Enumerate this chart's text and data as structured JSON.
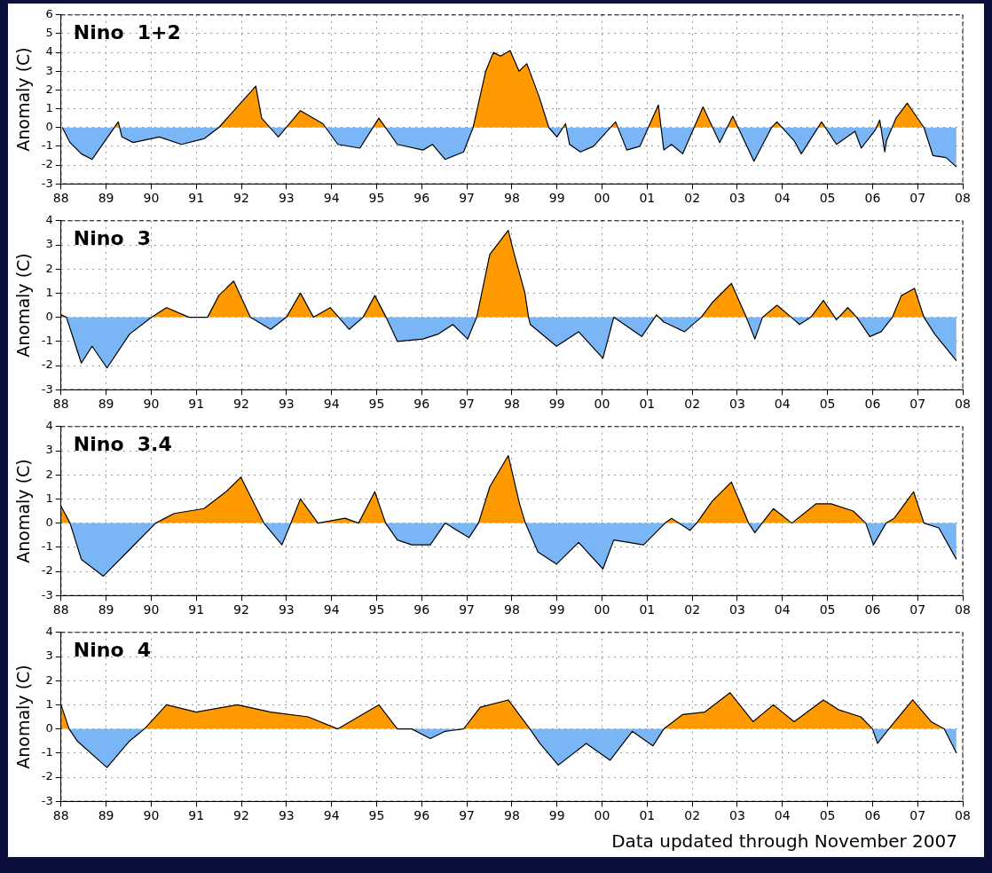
{
  "chart_data": [
    {
      "type": "area",
      "title": "Nino  1+2",
      "ylabel": "Anomaly (C)",
      "colors": [
        "#ff9900",
        "#7ab6f5"
      ],
      "grid": true,
      "marker": "none",
      "xlim": [
        1988,
        2008
      ],
      "ylim": [
        -3,
        6
      ],
      "yticks": [
        -3,
        -2,
        -1,
        0,
        1,
        2,
        3,
        4,
        5,
        6
      ],
      "xticks": [
        {
          "value": 1988,
          "label": "88"
        },
        {
          "value": 1989,
          "label": "89"
        },
        {
          "value": 1990,
          "label": "90"
        },
        {
          "value": 1991,
          "label": "91"
        },
        {
          "value": 1992,
          "label": "92"
        },
        {
          "value": 1993,
          "label": "93"
        },
        {
          "value": 1994,
          "label": "94"
        },
        {
          "value": 1995,
          "label": "95"
        },
        {
          "value": 1996,
          "label": "96"
        },
        {
          "value": 1997,
          "label": "97"
        },
        {
          "value": 1998,
          "label": "98"
        },
        {
          "value": 1999,
          "label": "99"
        },
        {
          "value": 2000,
          "label": "00"
        },
        {
          "value": 2001,
          "label": "01"
        },
        {
          "value": 2002,
          "label": "02"
        },
        {
          "value": 2003,
          "label": "03"
        },
        {
          "value": 2004,
          "label": "04"
        },
        {
          "value": 2005,
          "label": "05"
        },
        {
          "value": 2006,
          "label": "06"
        },
        {
          "value": 2007,
          "label": "07"
        },
        {
          "value": 2008,
          "label": "08"
        }
      ],
      "series": [
        {
          "color": "#000000",
          "x": [
            1988.03,
            1988.2,
            1988.45,
            1988.69,
            1989.27,
            1989.35,
            1989.6,
            1990.18,
            1990.67,
            1991.17,
            1991.5,
            1992.32,
            1992.45,
            1992.82,
            1993.31,
            1993.81,
            1994.14,
            1994.63,
            1995.05,
            1995.46,
            1996.03,
            1996.24,
            1996.52,
            1996.93,
            1997.14,
            1997.42,
            1997.59,
            1997.75,
            1997.96,
            1998.16,
            1998.33,
            1998.41,
            1998.61,
            1998.82,
            1999.0,
            1999.19,
            1999.28,
            1999.52,
            1999.81,
            2000.3,
            2000.55,
            2000.84,
            2001.25,
            2001.37,
            2001.54,
            2001.79,
            2002.24,
            2002.61,
            2002.9,
            2003.37,
            2003.76,
            2003.88,
            2004.26,
            2004.42,
            2004.87,
            2005.2,
            2005.61,
            2005.75,
            2006.07,
            2006.16,
            2006.27,
            2006.31,
            2006.52,
            2006.77,
            2007.14,
            2007.34,
            2007.63,
            2007.86
          ],
          "values": [
            0,
            -0.8,
            -1.4,
            -1.7,
            0.3,
            -0.5,
            -0.8,
            -0.5,
            -0.9,
            -0.6,
            0,
            2.2,
            0.5,
            -0.5,
            0.9,
            0.2,
            -0.9,
            -1.1,
            0.5,
            -0.9,
            -1.2,
            -0.9,
            -1.7,
            -1.3,
            0,
            3.0,
            4.0,
            3.8,
            4.1,
            3.0,
            3.4,
            2.9,
            1.6,
            0,
            -0.5,
            0.2,
            -0.9,
            -1.3,
            -1.0,
            0.3,
            -1.2,
            -1.0,
            1.2,
            -1.2,
            -0.9,
            -1.4,
            1.1,
            -0.8,
            0.6,
            -1.8,
            0,
            0.3,
            -0.7,
            -1.4,
            0.3,
            -0.9,
            -0.2,
            -1.1,
            -0.1,
            0.4,
            -1.3,
            -0.7,
            0.5,
            1.3,
            0,
            -1.5,
            -1.6,
            -2.1
          ]
        }
      ]
    },
    {
      "type": "area",
      "title": "Nino  3",
      "ylabel": "Anomaly (C)",
      "colors": [
        "#ff9900",
        "#7ab6f5"
      ],
      "grid": true,
      "marker": "none",
      "xlim": [
        1988,
        2008
      ],
      "ylim": [
        -3,
        4
      ],
      "yticks": [
        -3,
        -2,
        -1,
        0,
        1,
        2,
        3,
        4
      ],
      "xticks": [
        {
          "value": 1988,
          "label": "88"
        },
        {
          "value": 1989,
          "label": "89"
        },
        {
          "value": 1990,
          "label": "90"
        },
        {
          "value": 1991,
          "label": "91"
        },
        {
          "value": 1992,
          "label": "92"
        },
        {
          "value": 1993,
          "label": "93"
        },
        {
          "value": 1994,
          "label": "94"
        },
        {
          "value": 1995,
          "label": "95"
        },
        {
          "value": 1996,
          "label": "96"
        },
        {
          "value": 1997,
          "label": "97"
        },
        {
          "value": 1998,
          "label": "98"
        },
        {
          "value": 1999,
          "label": "99"
        },
        {
          "value": 2000,
          "label": "00"
        },
        {
          "value": 2001,
          "label": "01"
        },
        {
          "value": 2002,
          "label": "02"
        },
        {
          "value": 2003,
          "label": "03"
        },
        {
          "value": 2004,
          "label": "04"
        },
        {
          "value": 2005,
          "label": "05"
        },
        {
          "value": 2006,
          "label": "06"
        },
        {
          "value": 2007,
          "label": "07"
        },
        {
          "value": 2008,
          "label": "08"
        }
      ],
      "series": [
        {
          "color": "#000000",
          "x": [
            1988.0,
            1988.12,
            1988.45,
            1988.69,
            1989.02,
            1989.52,
            1990.01,
            1990.34,
            1990.84,
            1991.25,
            1991.5,
            1991.83,
            1992.2,
            1992.65,
            1993.0,
            1993.31,
            1993.6,
            1993.97,
            1994.39,
            1994.7,
            1994.96,
            1995.21,
            1995.46,
            1996.03,
            1996.36,
            1996.69,
            1997.02,
            1997.22,
            1997.51,
            1997.92,
            1998.04,
            1998.29,
            1998.37,
            1998.41,
            1998.99,
            1999.48,
            2000.02,
            2000.26,
            2000.88,
            2001.21,
            2001.37,
            2001.83,
            2002.2,
            2002.44,
            2002.87,
            2003.2,
            2003.39,
            2003.56,
            2003.88,
            2004.2,
            2004.38,
            2004.63,
            2004.91,
            2005.2,
            2005.45,
            2005.65,
            2005.94,
            2006.19,
            2006.44,
            2006.64,
            2006.93,
            2007.14,
            2007.38,
            2007.86
          ],
          "values": [
            0.1,
            0,
            -1.9,
            -1.2,
            -2.1,
            -0.7,
            0,
            0.4,
            0,
            0,
            0.9,
            1.5,
            0,
            -0.5,
            0,
            1.0,
            0,
            0.4,
            -0.5,
            0,
            0.9,
            0,
            -1.0,
            -0.9,
            -0.7,
            -0.3,
            -0.9,
            0,
            2.6,
            3.6,
            2.7,
            1.0,
            0,
            -0.3,
            -1.2,
            -0.6,
            -1.7,
            0,
            -0.8,
            0.1,
            -0.2,
            -0.6,
            0,
            0.6,
            1.4,
            0,
            -0.9,
            0,
            0.5,
            0,
            -0.3,
            0,
            0.7,
            -0.1,
            0.4,
            0,
            -0.8,
            -0.6,
            0,
            0.9,
            1.2,
            0,
            -0.7,
            -1.8
          ]
        }
      ]
    },
    {
      "type": "area",
      "title": "Nino  3.4",
      "ylabel": "Anomaly (C)",
      "colors": [
        "#ff9900",
        "#7ab6f5"
      ],
      "grid": true,
      "marker": "none",
      "xlim": [
        1988,
        2008
      ],
      "ylim": [
        -3,
        4
      ],
      "yticks": [
        -3,
        -2,
        -1,
        0,
        1,
        2,
        3,
        4
      ],
      "xticks": [
        {
          "value": 1988,
          "label": "88"
        },
        {
          "value": 1989,
          "label": "89"
        },
        {
          "value": 1990,
          "label": "90"
        },
        {
          "value": 1991,
          "label": "91"
        },
        {
          "value": 1992,
          "label": "92"
        },
        {
          "value": 1993,
          "label": "93"
        },
        {
          "value": 1994,
          "label": "94"
        },
        {
          "value": 1995,
          "label": "95"
        },
        {
          "value": 1996,
          "label": "96"
        },
        {
          "value": 1997,
          "label": "97"
        },
        {
          "value": 1998,
          "label": "98"
        },
        {
          "value": 1999,
          "label": "99"
        },
        {
          "value": 2000,
          "label": "00"
        },
        {
          "value": 2001,
          "label": "01"
        },
        {
          "value": 2002,
          "label": "02"
        },
        {
          "value": 2003,
          "label": "03"
        },
        {
          "value": 2004,
          "label": "04"
        },
        {
          "value": 2005,
          "label": "05"
        },
        {
          "value": 2006,
          "label": "06"
        },
        {
          "value": 2007,
          "label": "07"
        },
        {
          "value": 2008,
          "label": "08"
        }
      ],
      "series": [
        {
          "color": "#000000",
          "x": [
            1988.0,
            1988.2,
            1988.45,
            1988.94,
            1989.52,
            1990.1,
            1990.51,
            1991.17,
            1991.66,
            1991.99,
            1992.5,
            1992.9,
            1993.1,
            1993.31,
            1993.7,
            1994.3,
            1994.6,
            1994.96,
            1995.2,
            1995.46,
            1995.78,
            1996.19,
            1996.52,
            1997.05,
            1997.26,
            1997.51,
            1997.92,
            1998.17,
            1998.3,
            1998.58,
            1998.99,
            1999.48,
            2000.02,
            2000.26,
            2000.92,
            2001.4,
            2001.54,
            2001.95,
            2002.1,
            2002.44,
            2002.87,
            2003.25,
            2003.39,
            2003.55,
            2003.8,
            2004.21,
            2004.75,
            2005.08,
            2005.57,
            2005.85,
            2006.02,
            2006.3,
            2006.48,
            2006.91,
            2007.14,
            2007.47,
            2007.86
          ],
          "values": [
            0.7,
            0,
            -1.5,
            -2.2,
            -1.1,
            0,
            0.4,
            0.6,
            1.3,
            1.9,
            0,
            -0.9,
            0,
            1.0,
            0,
            0.2,
            0,
            1.3,
            0,
            -0.7,
            -0.9,
            -0.9,
            0,
            -0.6,
            0,
            1.5,
            2.8,
            0.8,
            0,
            -1.2,
            -1.7,
            -0.8,
            -1.9,
            -0.7,
            -0.9,
            0,
            0.2,
            -0.3,
            0,
            0.9,
            1.7,
            0,
            -0.4,
            0,
            0.6,
            0,
            0.8,
            0.8,
            0.5,
            0,
            -0.9,
            0,
            0.2,
            1.3,
            0,
            -0.2,
            -1.5
          ]
        }
      ]
    },
    {
      "type": "area",
      "title": "Nino  4",
      "ylabel": "Anomaly (C)",
      "colors": [
        "#ff9900",
        "#7ab6f5"
      ],
      "grid": true,
      "marker": "none",
      "xlim": [
        1988,
        2008
      ],
      "ylim": [
        -3,
        4
      ],
      "yticks": [
        -3,
        -2,
        -1,
        0,
        1,
        2,
        3,
        4
      ],
      "xticks": [
        {
          "value": 1988,
          "label": "88"
        },
        {
          "value": 1989,
          "label": "89"
        },
        {
          "value": 1990,
          "label": "90"
        },
        {
          "value": 1991,
          "label": "91"
        },
        {
          "value": 1992,
          "label": "92"
        },
        {
          "value": 1993,
          "label": "93"
        },
        {
          "value": 1994,
          "label": "94"
        },
        {
          "value": 1995,
          "label": "95"
        },
        {
          "value": 1996,
          "label": "96"
        },
        {
          "value": 1997,
          "label": "97"
        },
        {
          "value": 1998,
          "label": "98"
        },
        {
          "value": 1999,
          "label": "99"
        },
        {
          "value": 2000,
          "label": "00"
        },
        {
          "value": 2001,
          "label": "01"
        },
        {
          "value": 2002,
          "label": "02"
        },
        {
          "value": 2003,
          "label": "03"
        },
        {
          "value": 2004,
          "label": "04"
        },
        {
          "value": 2005,
          "label": "05"
        },
        {
          "value": 2006,
          "label": "06"
        },
        {
          "value": 2007,
          "label": "07"
        },
        {
          "value": 2008,
          "label": "08"
        }
      ],
      "annotations": [
        "Data updated through November 2007"
      ],
      "series": [
        {
          "color": "#000000",
          "x": [
            1988.0,
            1988.18,
            1988.36,
            1989.02,
            1989.52,
            1989.85,
            1990.34,
            1991.0,
            1991.91,
            1992.65,
            1993.48,
            1994.14,
            1995.05,
            1995.46,
            1995.78,
            1996.19,
            1996.52,
            1996.93,
            1997.3,
            1997.92,
            1998.4,
            1998.62,
            1999.03,
            1999.65,
            2000.18,
            2000.67,
            2001.13,
            2001.37,
            2001.79,
            2002.28,
            2002.84,
            2003.35,
            2003.8,
            2004.26,
            2004.91,
            2005.24,
            2005.74,
            2006.0,
            2006.11,
            2006.36,
            2006.89,
            2007.3,
            2007.59,
            2007.86
          ],
          "values": [
            1.0,
            0,
            -0.5,
            -1.6,
            -0.5,
            0,
            1.0,
            0.7,
            1.0,
            0.7,
            0.5,
            0,
            1.0,
            0,
            0,
            -0.4,
            -0.1,
            0,
            0.9,
            1.2,
            0,
            -0.6,
            -1.5,
            -0.6,
            -1.3,
            -0.1,
            -0.7,
            0,
            0.6,
            0.7,
            1.5,
            0.3,
            1.0,
            0.3,
            1.2,
            0.8,
            0.5,
            0,
            -0.6,
            0,
            1.2,
            0.3,
            0,
            -1.0
          ]
        }
      ]
    }
  ]
}
